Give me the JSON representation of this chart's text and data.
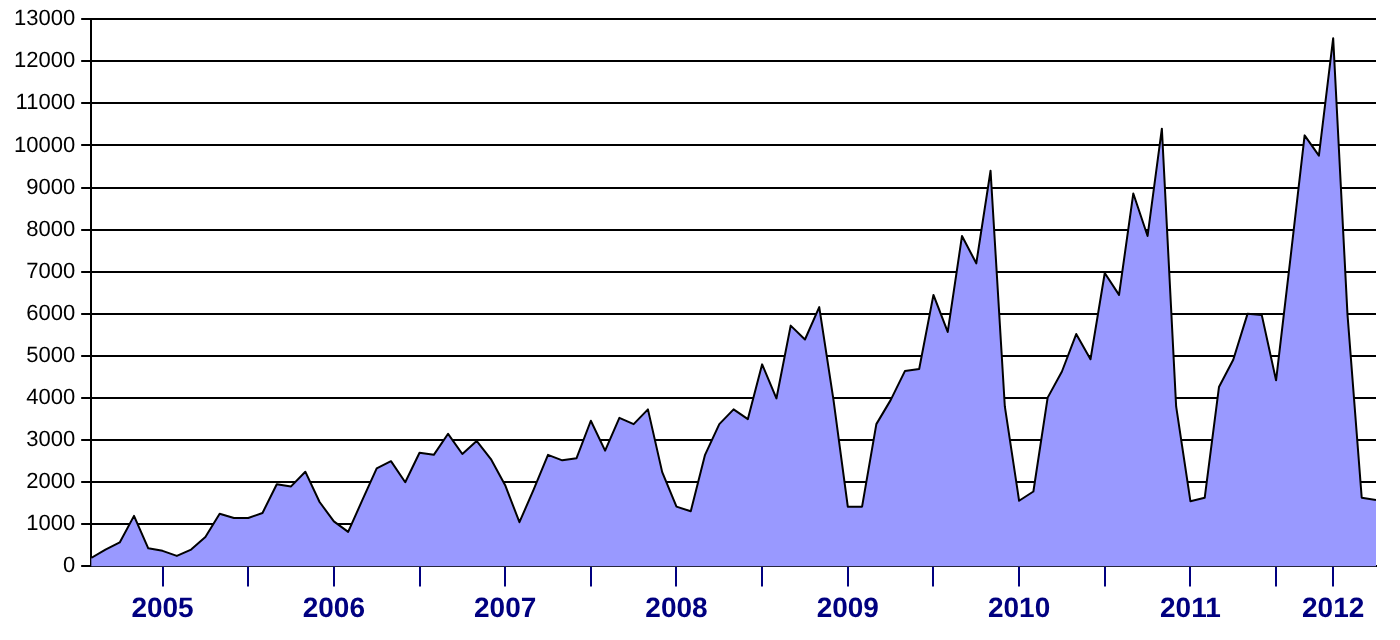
{
  "chart_data": {
    "type": "area",
    "x": [
      "2005-02",
      "2005-03",
      "2005-04",
      "2005-05",
      "2005-06",
      "2005-07",
      "2005-08",
      "2005-09",
      "2005-10",
      "2005-11",
      "2005-12",
      "2006-01",
      "2006-02",
      "2006-03",
      "2006-04",
      "2006-05",
      "2006-06",
      "2006-07",
      "2006-08",
      "2006-09",
      "2006-10",
      "2006-11",
      "2006-12",
      "2007-01",
      "2007-02",
      "2007-03",
      "2007-04",
      "2007-05",
      "2007-06",
      "2007-07",
      "2007-08",
      "2007-09",
      "2007-10",
      "2007-11",
      "2007-12",
      "2008-01",
      "2008-02",
      "2008-03",
      "2008-04",
      "2008-05",
      "2008-06",
      "2008-07",
      "2008-08",
      "2008-09",
      "2008-10",
      "2008-11",
      "2008-12",
      "2009-01",
      "2009-02",
      "2009-03",
      "2009-04",
      "2009-05",
      "2009-06",
      "2009-07",
      "2009-08",
      "2009-09",
      "2009-10",
      "2009-11",
      "2009-12",
      "2010-01",
      "2010-02",
      "2010-03",
      "2010-04",
      "2010-05",
      "2010-06",
      "2010-07",
      "2010-08",
      "2010-09",
      "2010-10",
      "2010-11",
      "2010-12",
      "2011-01",
      "2011-02",
      "2011-03",
      "2011-04",
      "2011-05",
      "2011-06",
      "2011-07",
      "2011-08",
      "2011-09",
      "2011-10",
      "2011-11",
      "2011-12",
      "2012-01",
      "2012-02",
      "2012-03",
      "2012-04",
      "2012-05",
      "2012-06",
      "2012-07",
      "2012-08"
    ],
    "series": [
      {
        "color": "#9999ff",
        "values": [
          200,
          400,
          570,
          1200,
          430,
          370,
          250,
          400,
          700,
          1250,
          1150,
          1150,
          1270,
          1950,
          1900,
          2250,
          1530,
          1070,
          820,
          1580,
          2330,
          2500,
          2000,
          2700,
          2650,
          3150,
          2670,
          2980,
          2550,
          1930,
          1050,
          1830,
          2650,
          2520,
          2570,
          3460,
          2750,
          3530,
          3380,
          3730,
          2240,
          1420,
          1310,
          2650,
          3380,
          3730,
          3500,
          4800,
          3990,
          5720,
          5390,
          6160,
          3950,
          1420,
          1420,
          3380,
          3950,
          4640,
          4690,
          6450,
          5570,
          7850,
          7200,
          9400,
          3800,
          1560,
          1780,
          4010,
          4630,
          5520,
          4920,
          6970,
          6450,
          8860,
          7850,
          10400,
          3800,
          1550,
          1630,
          4260,
          4910,
          6000,
          5970,
          4420,
          7300,
          10240,
          9760,
          12550,
          6000,
          1630,
          1580
        ]
      }
    ],
    "xlim": [
      "2005-02",
      "2012-08"
    ],
    "xticks": [
      {
        "value": "2005-07",
        "label": "2005"
      },
      {
        "value": "2006-01",
        "label": null
      },
      {
        "value": "2006-07",
        "label": "2006"
      },
      {
        "value": "2007-01",
        "label": null
      },
      {
        "value": "2007-07",
        "label": "2007"
      },
      {
        "value": "2008-01",
        "label": null
      },
      {
        "value": "2008-07",
        "label": "2008"
      },
      {
        "value": "2009-01",
        "label": null
      },
      {
        "value": "2009-07",
        "label": "2009"
      },
      {
        "value": "2010-01",
        "label": null
      },
      {
        "value": "2010-07",
        "label": "2010"
      },
      {
        "value": "2011-01",
        "label": null
      },
      {
        "value": "2011-07",
        "label": "2011"
      },
      {
        "value": "2012-01",
        "label": null
      },
      {
        "value": "2012-05",
        "label": "2012"
      }
    ],
    "ylim": [
      0,
      13000
    ],
    "yticks": [
      0,
      1000,
      2000,
      3000,
      4000,
      5000,
      6000,
      7000,
      8000,
      9000,
      10000,
      11000,
      12000,
      13000
    ],
    "grid": "y",
    "marker": "none",
    "legend": false
  }
}
